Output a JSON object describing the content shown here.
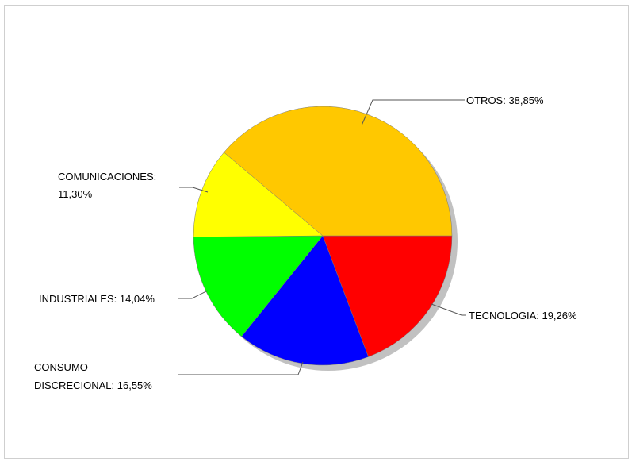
{
  "chart_data": {
    "type": "pie",
    "title": "",
    "legend": "none",
    "slices": [
      {
        "label": "TECNOLOGIA",
        "value_text": "19,26%",
        "value": 19.26,
        "color": "#ff0000"
      },
      {
        "label": "CONSUMO DISCRECIONAL",
        "value_text": "16,55%",
        "value": 16.55,
        "color": "#0000ff"
      },
      {
        "label": "INDUSTRIALES",
        "value_text": "14,04%",
        "value": 14.04,
        "color": "#00ff00"
      },
      {
        "label": "COMUNICACIONES",
        "value_text": "11,30%",
        "value": 11.3,
        "color": "#ffff00"
      },
      {
        "label": "OTROS",
        "value_text": "38,85%",
        "value": 38.85,
        "color": "#ffc800"
      }
    ],
    "labels": {
      "tecnologia": "TECNOLOGIA: 19,26%",
      "consumo_line1": "CONSUMO",
      "consumo_line2": "DISCRECIONAL: 16,55%",
      "industriales": "INDUSTRIALES: 14,04%",
      "comunicaciones_line1": "COMUNICACIONES:",
      "comunicaciones_line2": "11,30%",
      "otros": "OTROS: 38,85%"
    }
  }
}
